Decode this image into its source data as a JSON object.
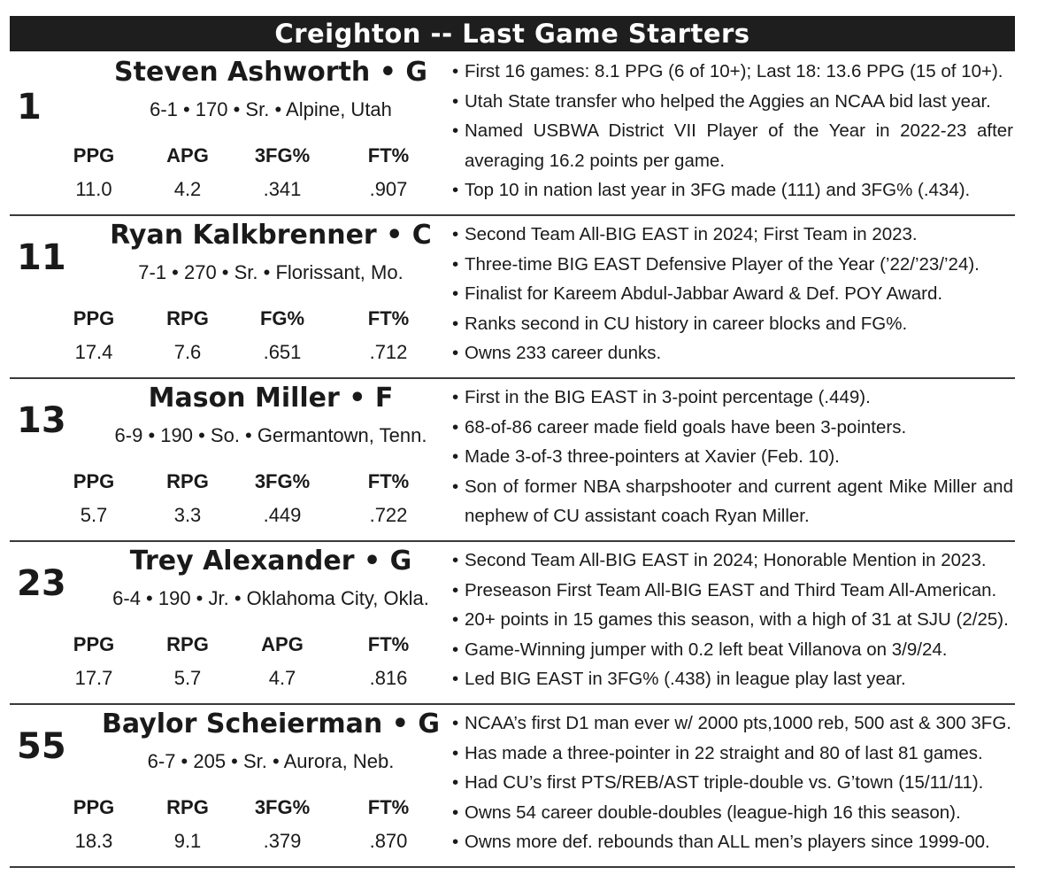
{
  "title": "Creighton -- Last Game Starters",
  "players": [
    {
      "number": "1",
      "name": "Steven Ashworth • G",
      "info": "6-1 • 170 • Sr. • Alpine, Utah",
      "stats": [
        {
          "label": "PPG",
          "value": "11.0"
        },
        {
          "label": "APG",
          "value": "4.2"
        },
        {
          "label": "3FG%",
          "value": ".341"
        },
        {
          "label": "FT%",
          "value": ".907"
        }
      ],
      "notes": [
        "First 16 games: 8.1 PPG (6 of 10+); Last 18: 13.6 PPG (15 of 10+).",
        "Utah State transfer who helped the Aggies an NCAA bid last year.",
        "Named USBWA District VII Player of the Year in 2022-23 after averaging 16.2 points per game.",
        "Top 10 in nation last year in 3FG made (111) and 3FG% (.434)."
      ]
    },
    {
      "number": "11",
      "name": "Ryan Kalkbrenner • C",
      "info": "7-1 • 270 • Sr. • Florissant, Mo.",
      "stats": [
        {
          "label": "PPG",
          "value": "17.4"
        },
        {
          "label": "RPG",
          "value": "7.6"
        },
        {
          "label": "FG%",
          "value": ".651"
        },
        {
          "label": "FT%",
          "value": ".712"
        }
      ],
      "notes": [
        "Second Team All-BIG EAST in 2024; First Team in 2023.",
        "Three-time BIG EAST Defensive Player of the Year (’22/’23/’24).",
        "Finalist for Kareem Abdul-Jabbar Award & Def. POY Award.",
        "Ranks second in CU history in career blocks and FG%.",
        "Owns 233 career dunks."
      ]
    },
    {
      "number": "13",
      "name": "Mason Miller • F",
      "info": "6-9 • 190 • So. • Germantown, Tenn.",
      "stats": [
        {
          "label": "PPG",
          "value": "5.7"
        },
        {
          "label": "RPG",
          "value": "3.3"
        },
        {
          "label": "3FG%",
          "value": ".449"
        },
        {
          "label": "FT%",
          "value": ".722"
        }
      ],
      "notes": [
        "First in the BIG EAST in 3-point percentage (.449).",
        "68-of-86 career made field goals have been 3-pointers.",
        "Made 3-of-3 three-pointers at Xavier (Feb. 10).",
        "Son of former NBA sharpshooter and current agent Mike Miller and nephew of CU assistant coach Ryan Miller."
      ]
    },
    {
      "number": "23",
      "name": "Trey Alexander • G",
      "info": "6-4 • 190 • Jr. • Oklahoma City, Okla.",
      "stats": [
        {
          "label": "PPG",
          "value": "17.7"
        },
        {
          "label": "RPG",
          "value": "5.7"
        },
        {
          "label": "APG",
          "value": "4.7"
        },
        {
          "label": "FT%",
          "value": ".816"
        }
      ],
      "notes": [
        "Second Team All-BIG EAST in 2024; Honorable Mention in 2023.",
        "Preseason First Team All-BIG EAST and Third Team All-American.",
        "20+ points in 15 games this season, with a high of 31 at SJU (2/25).",
        "Game-Winning jumper with 0.2 left beat Villanova on 3/9/24.",
        "Led BIG EAST in 3FG% (.438) in league play last year."
      ]
    },
    {
      "number": "55",
      "name": "Baylor Scheierman • G",
      "info": "6-7 • 205 • Sr. • Aurora, Neb.",
      "stats": [
        {
          "label": "PPG",
          "value": "18.3"
        },
        {
          "label": "RPG",
          "value": "9.1"
        },
        {
          "label": "3FG%",
          "value": ".379"
        },
        {
          "label": "FT%",
          "value": ".870"
        }
      ],
      "notes": [
        "NCAA’s first D1 man ever w/ 2000 pts,1000 reb, 500 ast & 300 3FG.",
        "Has made a three-pointer in 22 straight and 80 of last 81 games.",
        "Had CU’s first PTS/REB/AST triple-double vs. G’town (15/11/11).",
        "Owns 54 career double-doubles (league-high 16 this season).",
        "Owns more def. rebounds than ALL men’s players since 1999-00."
      ]
    }
  ]
}
